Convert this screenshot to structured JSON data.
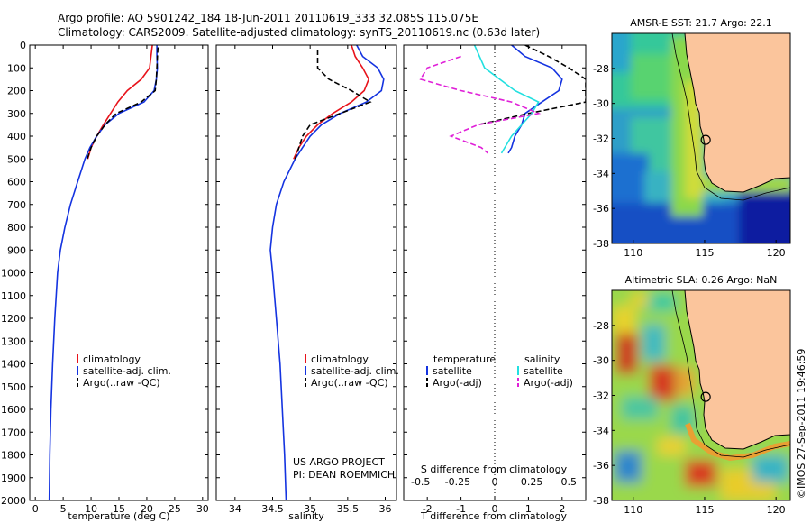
{
  "title": {
    "line1": "Argo profile: AO 5901242_184 18-Jun-2011 20110619_333 32.085S 115.075E",
    "line2": "Climatology: CARS2009. Satellite-adjusted climatology: synTS_20110619.nc (0.63d later)"
  },
  "colors": {
    "climatology": "#e8131b",
    "satellite": "#1433e0",
    "argo": "#000000",
    "salinity_sat": "#22e0e0",
    "salinity_argo": "#e020d8",
    "land": "#fbc59c"
  },
  "chart_data": [
    {
      "type": "line",
      "panel": "temperature",
      "xlabel": "temperature (deg C)",
      "ylim": [
        2000,
        0
      ],
      "xlim": [
        -1,
        31
      ],
      "xticks": [
        0,
        5,
        10,
        15,
        20,
        25,
        30
      ],
      "yticks": [
        0,
        100,
        200,
        300,
        400,
        500,
        600,
        700,
        800,
        900,
        1000,
        1100,
        1200,
        1300,
        1400,
        1500,
        1600,
        1700,
        1800,
        1900,
        2000
      ],
      "legend": [
        "climatology",
        "satellite-adj. clim.",
        "Argo(..raw -QC)"
      ],
      "series": [
        {
          "name": "climatology",
          "color": "#e8131b",
          "depth": [
            0,
            100,
            150,
            200,
            250,
            300,
            350,
            400,
            450,
            500
          ],
          "values": [
            21.0,
            20.5,
            19.0,
            16.5,
            14.8,
            13.5,
            12.2,
            11.0,
            10.0,
            9.4
          ]
        },
        {
          "name": "satellite-adj. clim.",
          "color": "#1433e0",
          "depth": [
            0,
            50,
            100,
            150,
            200,
            250,
            300,
            350,
            400,
            450,
            500,
            600,
            700,
            800,
            900,
            1000,
            1200,
            1400,
            1600,
            1800,
            2000
          ],
          "values": [
            21.8,
            21.8,
            21.9,
            21.7,
            21.3,
            19.5,
            15.0,
            12.5,
            11.0,
            9.8,
            8.9,
            7.6,
            6.3,
            5.3,
            4.5,
            4.0,
            3.5,
            3.1,
            2.8,
            2.6,
            2.5
          ]
        },
        {
          "name": "Argo(..raw -QC)",
          "color": "#000000",
          "dashed": true,
          "depth": [
            10,
            50,
            100,
            150,
            200,
            250,
            300,
            350,
            400,
            450,
            500
          ],
          "values": [
            22.0,
            21.9,
            21.8,
            21.7,
            21.5,
            19.0,
            14.5,
            12.5,
            11.0,
            10.0,
            9.3
          ]
        }
      ]
    },
    {
      "type": "line",
      "panel": "salinity",
      "xlabel": "salinity",
      "ylim": [
        2000,
        0
      ],
      "xlim": [
        33.75,
        36.15
      ],
      "xticks": [
        34,
        34.5,
        35,
        35.5,
        36
      ],
      "xticklabels": [
        "34",
        "34.5",
        "35",
        "35.5",
        "36"
      ],
      "legend": [
        "climatology",
        "satellite-adj. clim.",
        "Argo(..raw -QC)"
      ],
      "annotation": [
        "US ARGO PROJECT",
        "PI: DEAN ROEMMICH"
      ],
      "series": [
        {
          "name": "climatology",
          "color": "#e8131b",
          "depth": [
            0,
            50,
            100,
            150,
            200,
            250,
            300,
            350,
            400,
            450,
            500
          ],
          "values": [
            35.55,
            35.6,
            35.7,
            35.78,
            35.72,
            35.55,
            35.3,
            35.1,
            34.95,
            34.85,
            34.78
          ]
        },
        {
          "name": "satellite-adj. clim.",
          "color": "#1433e0",
          "depth": [
            0,
            50,
            100,
            150,
            200,
            250,
            300,
            350,
            400,
            450,
            500,
            600,
            700,
            800,
            900,
            1000,
            1200,
            1400,
            1600,
            1800,
            2000
          ],
          "values": [
            35.62,
            35.7,
            35.9,
            35.98,
            35.95,
            35.75,
            35.4,
            35.15,
            35.0,
            34.9,
            34.8,
            34.65,
            34.55,
            34.5,
            34.47,
            34.5,
            34.55,
            34.6,
            34.63,
            34.66,
            34.68
          ]
        },
        {
          "name": "Argo(..raw -QC)",
          "color": "#000000",
          "dashed": true,
          "depth": [
            20,
            100,
            150,
            200,
            250,
            300,
            350,
            400,
            450,
            500
          ],
          "values": [
            35.1,
            35.1,
            35.25,
            35.55,
            35.8,
            35.4,
            35.0,
            34.9,
            34.85,
            34.8
          ]
        }
      ]
    },
    {
      "type": "line",
      "panel": "difference",
      "xlabel": "T difference from climatology",
      "xlabel_top": "S difference from climatology",
      "ylim": [
        2000,
        0
      ],
      "xlim": [
        -2.7,
        2.7
      ],
      "xticks": [
        -2,
        -1,
        0,
        1,
        2
      ],
      "s_ticks": [
        -0.5,
        -0.25,
        0,
        0.25,
        0.5
      ],
      "s_ticklabels": [
        "-0.5",
        "-0.25",
        "0",
        "0.25",
        "0.5"
      ],
      "legend_headers": [
        "temperature",
        "salinity"
      ],
      "legend": [
        "satellite",
        "Argo(-adj)",
        "satellite",
        "Argo(-adj)"
      ],
      "series": [
        {
          "name": "temperature satellite",
          "color": "#1433e0",
          "depth": [
            0,
            50,
            100,
            150,
            200,
            250,
            300,
            350,
            400,
            450,
            475
          ],
          "values": [
            0.5,
            0.9,
            1.7,
            2.0,
            1.9,
            1.4,
            0.9,
            0.8,
            0.6,
            0.5,
            0.4
          ]
        },
        {
          "name": "temperature Argo(-adj)",
          "color": "#000000",
          "dashed": true,
          "depth": [
            0,
            50,
            100,
            150,
            200,
            250,
            300,
            350
          ],
          "values": [
            0.9,
            1.6,
            2.2,
            2.7,
            2.7,
            2.7,
            1.0,
            -0.5
          ]
        },
        {
          "name": "salinity satellite",
          "color": "#22e0e0",
          "depth": [
            0,
            100,
            200,
            250,
            300,
            350,
            400,
            450,
            475
          ],
          "values": [
            -0.6,
            -0.3,
            0.6,
            1.3,
            1.1,
            0.8,
            0.5,
            0.3,
            0.2
          ]
        },
        {
          "name": "salinity Argo(-adj)",
          "color": "#e020d8",
          "dashed": true,
          "depth": [
            50,
            100,
            150,
            200,
            250,
            300,
            350,
            400,
            450,
            475
          ],
          "values": [
            -1.0,
            -2.0,
            -2.2,
            -1.0,
            0.5,
            1.3,
            -0.5,
            -1.3,
            -0.4,
            -0.2
          ]
        }
      ]
    },
    {
      "type": "heatmap",
      "panel": "sst_map",
      "title": "AMSR-E SST: 21.7 Argo: 22.1",
      "xlim": [
        108.5,
        121
      ],
      "ylim": [
        -38,
        -26
      ],
      "xticks": [
        110,
        115,
        120
      ],
      "yticks": [
        -28,
        -30,
        -32,
        -34,
        -36,
        -38
      ],
      "marker": {
        "lon": 115.075,
        "lat": -32.085
      }
    },
    {
      "type": "heatmap",
      "panel": "sla_map",
      "title": "Altimetric SLA: 0.26 Argo: NaN",
      "xlim": [
        108.5,
        121
      ],
      "ylim": [
        -38,
        -26
      ],
      "xticks": [
        110,
        115,
        120
      ],
      "yticks": [
        -28,
        -30,
        -32,
        -34,
        -36,
        -38
      ],
      "marker": {
        "lon": 115.075,
        "lat": -32.085
      }
    }
  ],
  "footer_stamp": "©IMOS 27-Sep-2011 19:46:59"
}
